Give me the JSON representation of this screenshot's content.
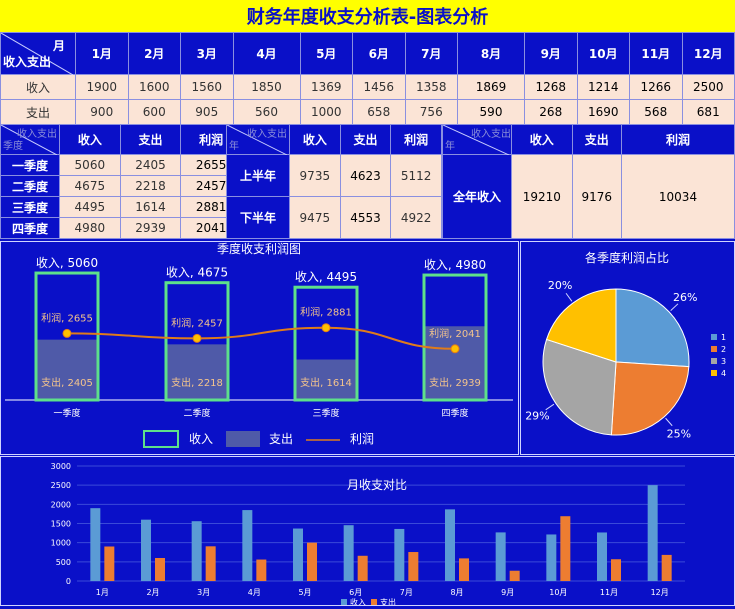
{
  "title": "财务年度收支分析表-图表分析",
  "monthly": {
    "corner_top": "月",
    "corner_bottom": "收入支出",
    "months": [
      "1月",
      "2月",
      "3月",
      "4月",
      "5月",
      "6月",
      "7月",
      "8月",
      "9月",
      "10月",
      "11月",
      "12月"
    ],
    "rows": [
      {
        "label": "收入",
        "values": [
          "1900",
          "1600",
          "1560",
          "1850",
          "1369",
          "1456",
          "1358",
          "1869",
          "1268",
          "1214",
          "1266",
          "2500"
        ]
      },
      {
        "label": "支出",
        "values": [
          "900",
          "600",
          "905",
          "560",
          "1000",
          "658",
          "756",
          "590",
          "268",
          "1690",
          "568",
          "681"
        ]
      }
    ]
  },
  "quarter_table": {
    "corner_top": "收入支出",
    "corner_bottom": "季度",
    "headers": [
      "收入",
      "支出",
      "利润"
    ],
    "rows": [
      {
        "label": "一季度",
        "values": [
          "5060",
          "2405",
          "2655"
        ]
      },
      {
        "label": "二季度",
        "values": [
          "4675",
          "2218",
          "2457"
        ]
      },
      {
        "label": "三季度",
        "values": [
          "4495",
          "1614",
          "2881"
        ]
      },
      {
        "label": "四季度",
        "values": [
          "4980",
          "2939",
          "2041"
        ]
      }
    ]
  },
  "half_table": {
    "corner_top": "收入支出",
    "corner_bottom": "年",
    "headers": [
      "收入",
      "支出",
      "利润"
    ],
    "rows": [
      {
        "label": "上半年",
        "values": [
          "9735",
          "4623",
          "5112"
        ]
      },
      {
        "label": "下半年",
        "values": [
          "9475",
          "4553",
          "4922"
        ]
      }
    ]
  },
  "year_table": {
    "corner_top": "收入支出",
    "corner_bottom": "年",
    "headers": [
      "收入",
      "支出",
      "利润"
    ],
    "rows": [
      {
        "label": "全年收入",
        "values": [
          "19210",
          "9176",
          "10034"
        ]
      }
    ]
  },
  "colors": {
    "background": "#0a10c8",
    "title_bar": "#ffff00",
    "cell": "#fbe4d6",
    "income_outline": "#5ee08a",
    "expense_fill": "#4f5aa8",
    "profit_line": "#e07b1a",
    "pie": [
      "#5b9bd5",
      "#ed7d31",
      "#a5a5a5",
      "#ffc000"
    ],
    "bar_income": "#5b9bd5",
    "bar_expense": "#ed7d31"
  },
  "chart_data": [
    {
      "type": "bar",
      "title": "季度收支利润图",
      "categories": [
        "一季度",
        "二季度",
        "三季度",
        "四季度"
      ],
      "series": [
        {
          "name": "收入",
          "kind": "bar-outline",
          "values": [
            5060,
            4675,
            4495,
            4980
          ],
          "labels": [
            "收入, 5060",
            "收入, 4675",
            "收入, 4495",
            "收入, 4980"
          ]
        },
        {
          "name": "支出",
          "kind": "bar-fill",
          "values": [
            2405,
            2218,
            1614,
            2939
          ],
          "labels": [
            "支出, 2405",
            "支出, 2218",
            "支出, 1614",
            "支出, 2939"
          ]
        },
        {
          "name": "利润",
          "kind": "line",
          "values": [
            2655,
            2457,
            2881,
            2041
          ],
          "labels": [
            "利润, 2655",
            "利润, 2457",
            "利润, 2881",
            "利润, 2041"
          ]
        }
      ],
      "ylim": [
        0,
        5500
      ],
      "legend": [
        "收入",
        "支出",
        "利润"
      ],
      "legend_position": "bottom"
    },
    {
      "type": "pie",
      "title": "各季度利润占比",
      "labels": [
        "1",
        "2",
        "3",
        "4"
      ],
      "values": [
        26,
        25,
        29,
        20
      ],
      "value_labels": [
        "26%",
        "25%",
        "29%",
        "20%"
      ],
      "legend_position": "right"
    },
    {
      "type": "bar",
      "title": "月收支对比",
      "categories": [
        "1月",
        "2月",
        "3月",
        "4月",
        "5月",
        "6月",
        "7月",
        "8月",
        "9月",
        "10月",
        "11月",
        "12月"
      ],
      "series": [
        {
          "name": "收入",
          "values": [
            1900,
            1600,
            1560,
            1850,
            1369,
            1456,
            1358,
            1869,
            1268,
            1214,
            1266,
            2500
          ]
        },
        {
          "name": "支出",
          "values": [
            900,
            600,
            905,
            560,
            1000,
            658,
            756,
            590,
            268,
            1690,
            568,
            681
          ]
        }
      ],
      "yticks": [
        "0",
        "500",
        "1000",
        "1500",
        "2000",
        "2500",
        "3000"
      ],
      "ylim": [
        0,
        3000
      ],
      "grid": true,
      "legend_position": "bottom"
    }
  ]
}
